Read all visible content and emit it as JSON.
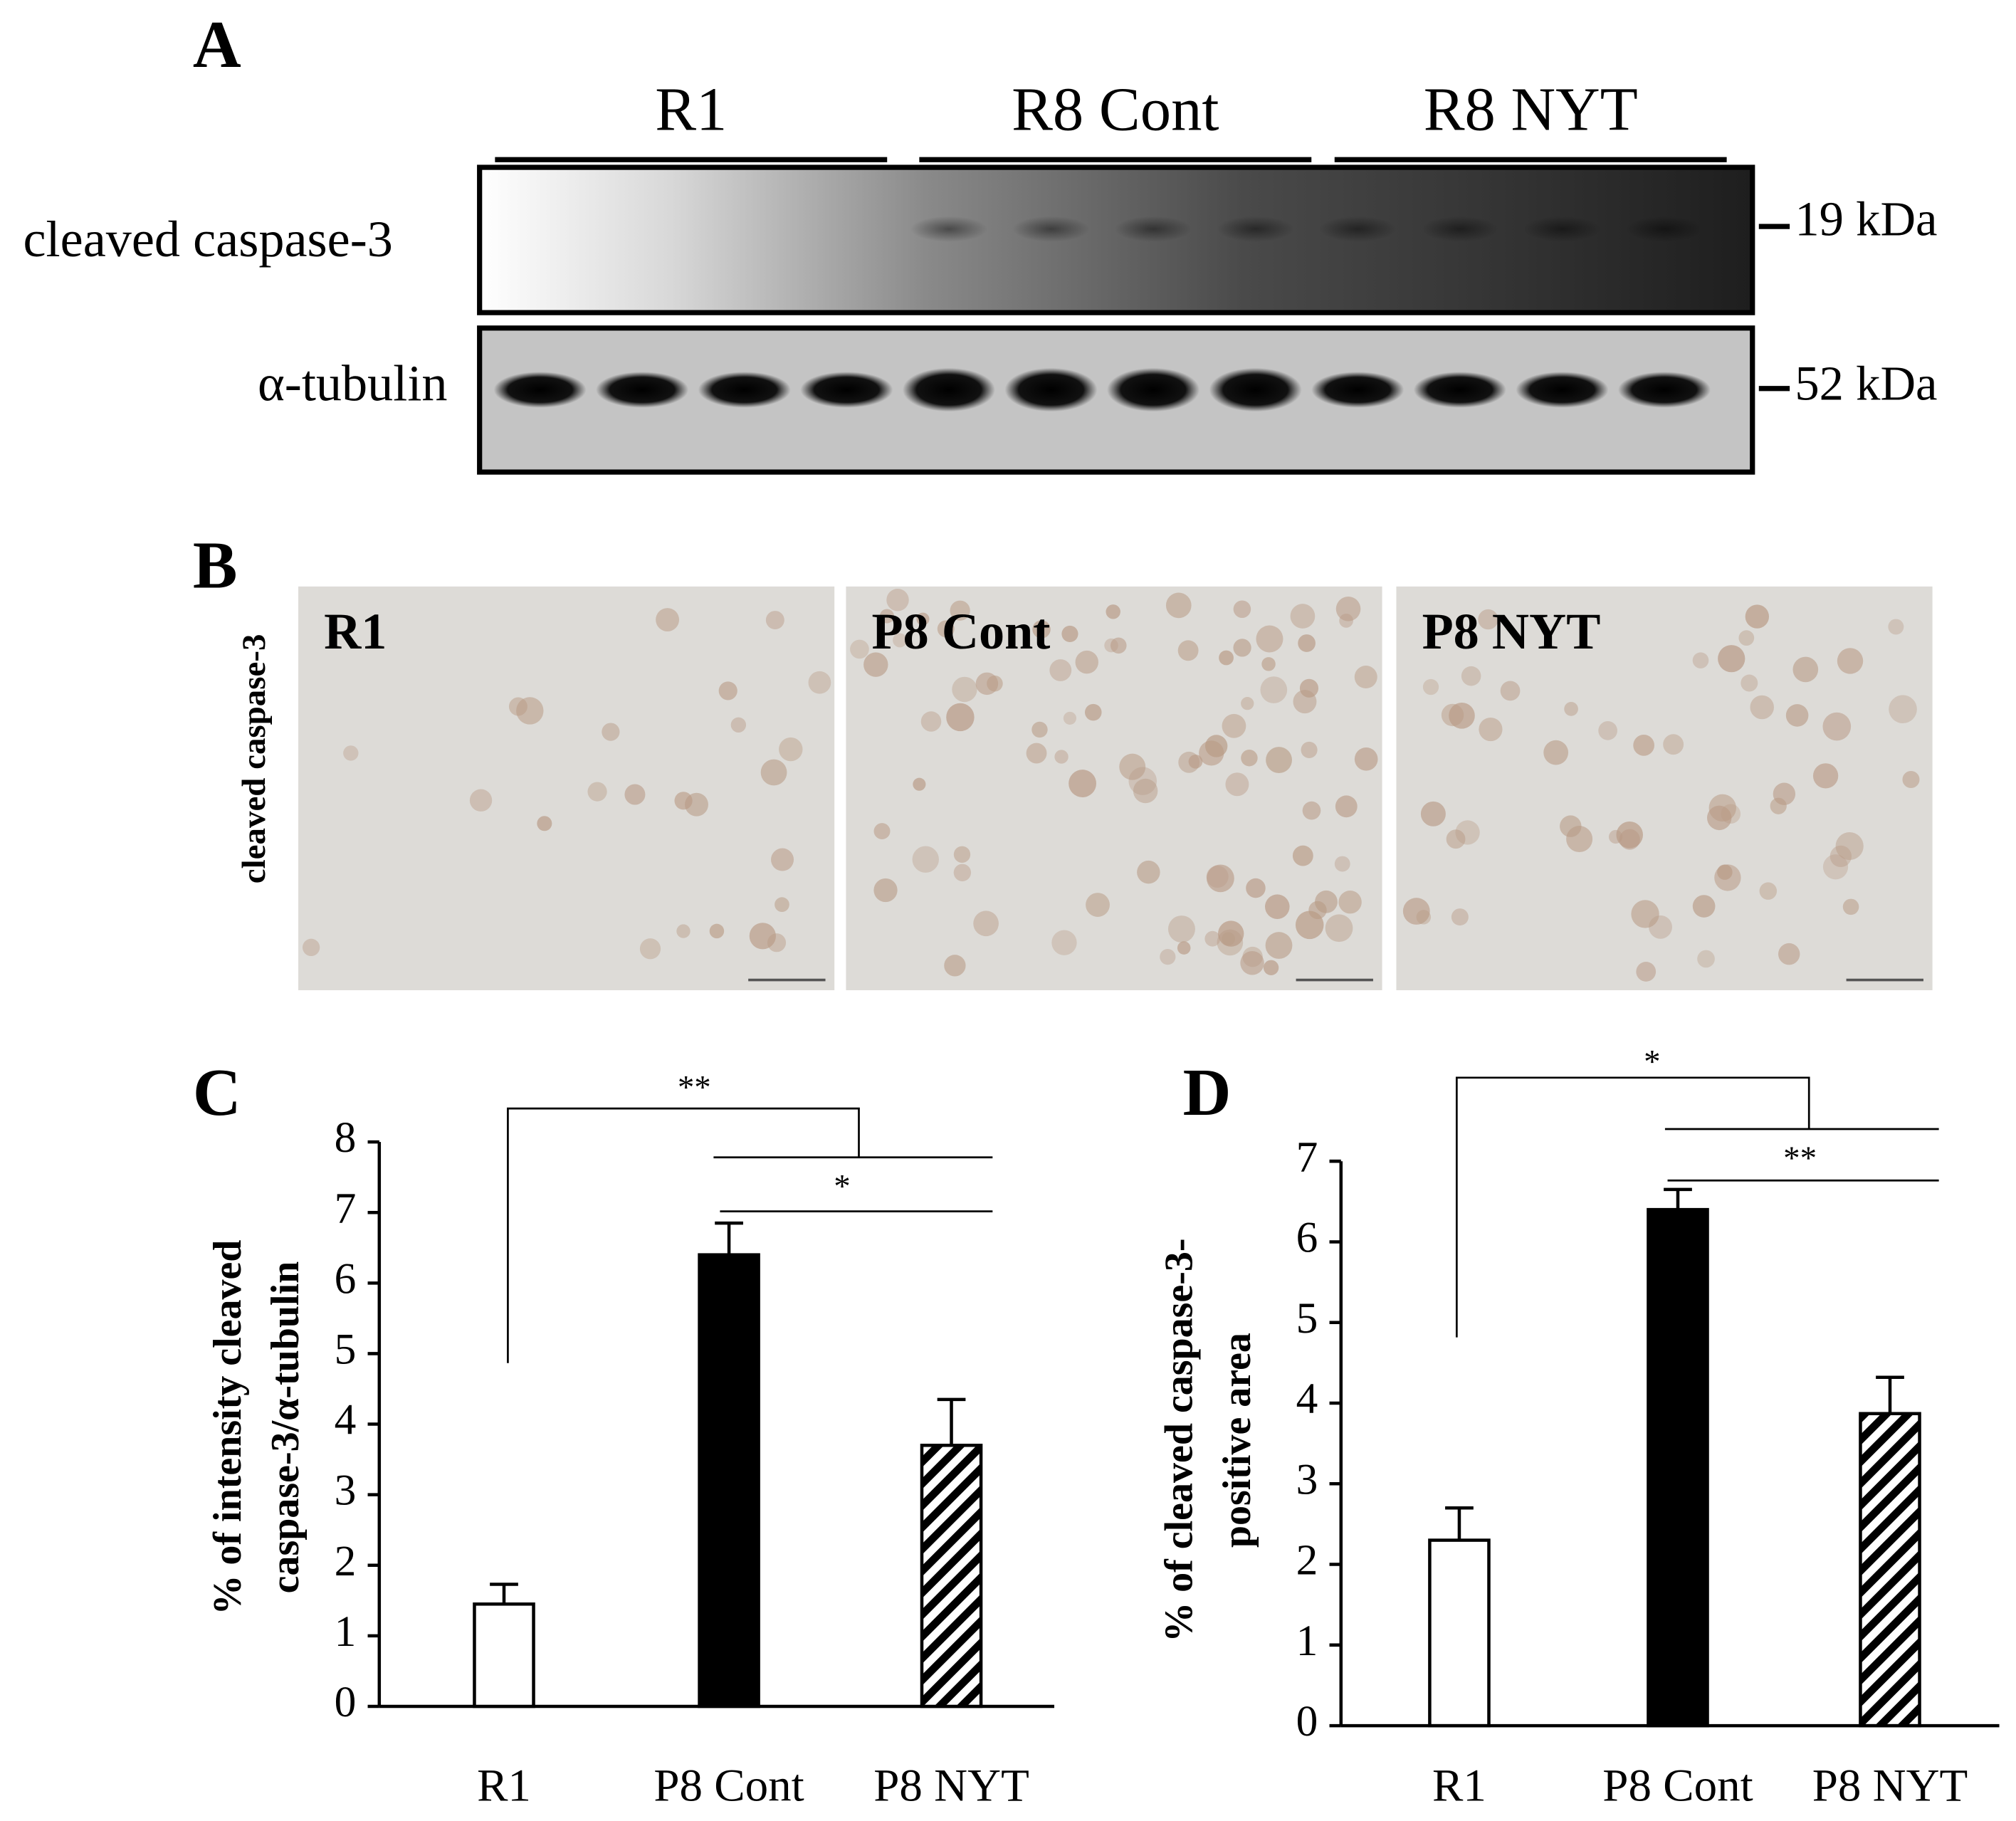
{
  "panel_a": {
    "letter": "A",
    "groups": [
      "R1",
      "R8 Cont",
      "R8 NYT"
    ],
    "rows": [
      {
        "label": "cleaved caspase-3",
        "size": "19 kDa"
      },
      {
        "label": "α-tubulin",
        "size": "52 kDa"
      }
    ]
  },
  "panel_b": {
    "letter": "B",
    "side_label": "cleaved caspase-3",
    "images": [
      "R1",
      "P8 Cont",
      "P8 NYT"
    ]
  },
  "chart_data": [
    {
      "type": "bar",
      "title": "C",
      "ylabel": [
        "% of intensity cleaved",
        "caspase-3/α-tubulin"
      ],
      "categories": [
        "R1",
        "P8 Cont",
        "P8 NYT"
      ],
      "values": [
        1.45,
        6.4,
        3.7
      ],
      "errors": [
        0.28,
        0.45,
        0.65
      ],
      "colors": [
        "#ffffff",
        "#000000",
        "#ffffff"
      ],
      "patterns": [
        "solid",
        "solid",
        "hatch"
      ],
      "ylim": [
        0,
        8
      ],
      "yticks": [
        0,
        1,
        2,
        3,
        4,
        5,
        6,
        7,
        8
      ],
      "annotations": [
        "**",
        "*"
      ]
    },
    {
      "type": "bar",
      "title": "D",
      "ylabel": [
        "% of cleaved caspase-3-",
        "positive area"
      ],
      "categories": [
        "R1",
        "P8 Cont",
        "P8 NYT"
      ],
      "values": [
        2.3,
        6.4,
        3.87
      ],
      "errors": [
        0.4,
        0.25,
        0.45
      ],
      "colors": [
        "#ffffff",
        "#000000",
        "#ffffff"
      ],
      "patterns": [
        "solid",
        "solid",
        "hatch"
      ],
      "ylim": [
        0,
        7
      ],
      "yticks": [
        0,
        1,
        2,
        3,
        4,
        5,
        6,
        7
      ],
      "annotations": [
        "*",
        "**"
      ]
    }
  ]
}
